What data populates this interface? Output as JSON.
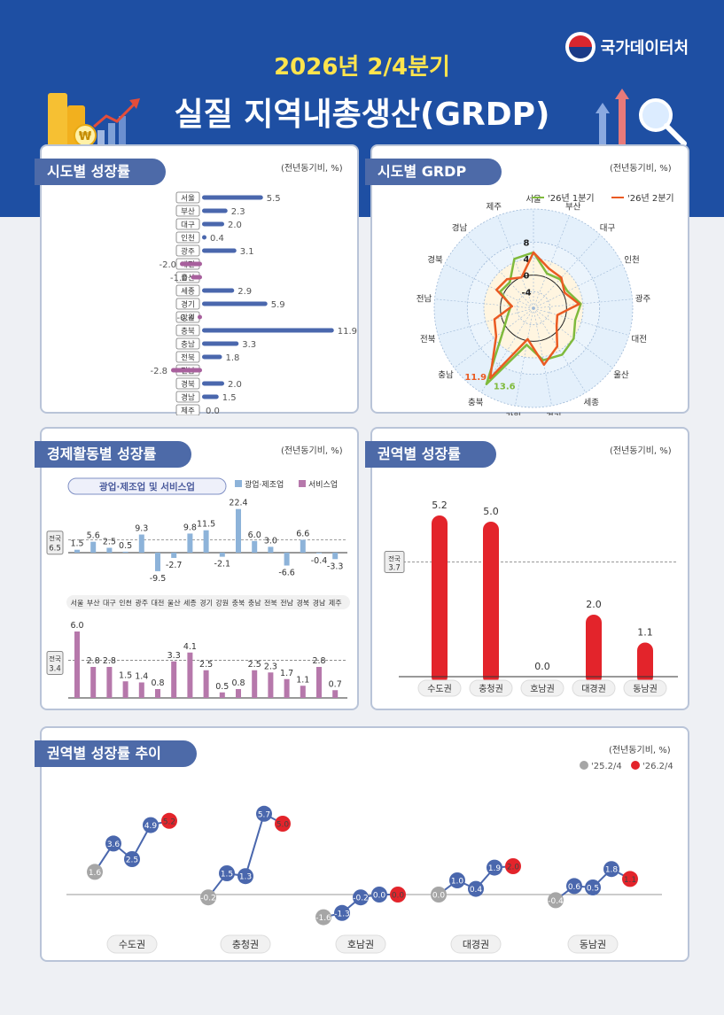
{
  "header": {
    "subtitle": "2026년 2/4분기",
    "title": "실질 지역내총생산(GRDP)",
    "logo_text": "국가데이터처"
  },
  "colors": {
    "blue": "#4a67ad",
    "purple": "#a8609d",
    "red": "#e3242b",
    "green": "#7fba3c",
    "orange": "#ea5a22",
    "grey": "#a6a6a6",
    "lightblue": "#8db3d9",
    "mediumpurple": "#b678ab"
  },
  "panels": {
    "p1": {
      "title": "시도별 성장률",
      "unit": "(전년동기비, %)"
    },
    "p2": {
      "title": "시도별 GRDP",
      "unit": "(전년동기비, %)"
    },
    "p3": {
      "title": "경제활동별 성장률",
      "unit": "(전년동기비, %)",
      "subtitle": "광업·제조업 및 서비스업"
    },
    "p4": {
      "title": "권역별 성장률",
      "unit": "(전년동기비, %)"
    },
    "p5": {
      "title": "권역별 성장률 추이",
      "unit": "(전년동기비, %)"
    }
  },
  "chart_data": [
    {
      "type": "bar",
      "orientation": "horizontal",
      "title": "시도별 성장률",
      "categories": [
        "서울",
        "부산",
        "대구",
        "인천",
        "광주",
        "대전",
        "울산",
        "세종",
        "경기",
        "강원",
        "충북",
        "충남",
        "전북",
        "전남",
        "경북",
        "경남",
        "제주"
      ],
      "values": [
        5.5,
        2.3,
        2.0,
        0.4,
        3.1,
        -2.0,
        -1.0,
        2.9,
        5.9,
        -0.4,
        11.9,
        3.3,
        1.8,
        -2.8,
        2.0,
        1.5,
        0.0
      ],
      "labels": [
        "5.5",
        "2.3",
        "2.0",
        "0.4",
        "3.1",
        "-2.0",
        "-1.0",
        "2.9",
        "5.9",
        "-0.4",
        "11.9",
        "3.3",
        "1.8",
        "-2.8",
        "2.0",
        "1.5",
        "0.0"
      ]
    },
    {
      "type": "radar",
      "title": "시도별 GRDP",
      "categories": [
        "서울",
        "부산",
        "대구",
        "인천",
        "광주",
        "대전",
        "울산",
        "세종",
        "경기",
        "강원",
        "충북",
        "충남",
        "전북",
        "전남",
        "경북",
        "경남",
        "제주"
      ],
      "rings": [
        "8",
        "4",
        "0",
        "-4"
      ],
      "series": [
        {
          "name": "'26년 1분기",
          "values": [
            5.5,
            1.0,
            1.5,
            1.2,
            3.5,
            2.5,
            4.2,
            5.2,
            4.8,
            1.0,
            13.6,
            1.2,
            -1.5,
            -2.5,
            1.0,
            0.5,
            4.8
          ]
        },
        {
          "name": "'26년 2분기",
          "values": [
            5.5,
            2.3,
            2.0,
            0.4,
            3.1,
            -2.0,
            -1.0,
            2.9,
            5.9,
            -0.4,
            11.9,
            3.3,
            1.8,
            -2.8,
            2.0,
            1.5,
            0.0
          ]
        }
      ],
      "annotations": [
        "11.9",
        "13.6"
      ]
    },
    {
      "type": "bar",
      "title": "광업·제조업",
      "series_name": "광업·제조업",
      "categories": [
        "서울",
        "부산",
        "대구",
        "인천",
        "광주",
        "대전",
        "울산",
        "세종",
        "경기",
        "강원",
        "충북",
        "충남",
        "전북",
        "전남",
        "경북",
        "경남",
        "제주"
      ],
      "values": [
        1.5,
        5.6,
        2.5,
        0.5,
        9.3,
        -9.5,
        -2.7,
        9.8,
        11.5,
        -2.1,
        22.4,
        6.0,
        3.0,
        -6.6,
        6.6,
        -0.4,
        -3.3
      ],
      "labels": [
        "1.5",
        "5.6",
        "2.5",
        "0.5",
        "9.3",
        "-9.5",
        "-2.7",
        "9.8",
        "11.5",
        "-2.1",
        "22.4",
        "6.0",
        "3.0",
        "-6.6",
        "6.6",
        "-0.4",
        "-3.3"
      ],
      "national_label": "전국",
      "national": "6.5"
    },
    {
      "type": "bar",
      "title": "서비스업",
      "series_name": "서비스업",
      "values": [
        6.0,
        2.8,
        2.8,
        1.5,
        1.4,
        0.8,
        3.3,
        4.1,
        2.5,
        0.5,
        0.8,
        2.5,
        2.3,
        1.7,
        1.1,
        2.8,
        0.7
      ],
      "labels": [
        "6.0",
        "2.8",
        "2.8",
        "1.5",
        "1.4",
        "0.8",
        "3.3",
        "4.1",
        "2.5",
        "0.5",
        "0.8",
        "2.5",
        "2.3",
        "1.7",
        "1.1",
        "2.8",
        "0.7"
      ],
      "national_label": "전국",
      "national": "3.4"
    },
    {
      "type": "bar",
      "title": "권역별 성장률",
      "categories": [
        "수도권",
        "충청권",
        "호남권",
        "대경권",
        "동남권"
      ],
      "values": [
        5.2,
        5.0,
        0.0,
        2.0,
        1.1
      ],
      "labels": [
        "5.2",
        "5.0",
        "0.0",
        "2.0",
        "1.1"
      ],
      "national_label": "전국",
      "national": "3.7"
    },
    {
      "type": "line",
      "title": "권역별 성장률 추이",
      "legend": [
        "'25.2/4",
        "'26.2/4"
      ],
      "groups": [
        {
          "name": "수도권",
          "values": [
            1.6,
            3.6,
            2.5,
            4.9,
            5.2
          ],
          "labels": [
            "1.6",
            "3.6",
            "2.5",
            "4.9",
            "5.2"
          ]
        },
        {
          "name": "충청권",
          "values": [
            -0.2,
            1.5,
            1.3,
            5.7,
            5.0
          ],
          "labels": [
            "-0.2",
            "1.5",
            "1.3",
            "5.7",
            "5.0"
          ]
        },
        {
          "name": "호남권",
          "values": [
            -1.6,
            -1.3,
            -0.2,
            0.0,
            0.0
          ],
          "labels": [
            "-1.6",
            "-1.3",
            "-0.2",
            "0.0",
            "0.0"
          ]
        },
        {
          "name": "대경권",
          "values": [
            0.0,
            1.0,
            0.4,
            1.9,
            2.0
          ],
          "labels": [
            "0.0",
            "1.0",
            "0.4",
            "1.9",
            "2.0"
          ]
        },
        {
          "name": "동남권",
          "values": [
            -0.4,
            0.6,
            0.5,
            1.8,
            1.1
          ],
          "labels": [
            "-0.4",
            "0.6",
            "0.5",
            "1.8",
            "1.1"
          ]
        }
      ]
    }
  ]
}
